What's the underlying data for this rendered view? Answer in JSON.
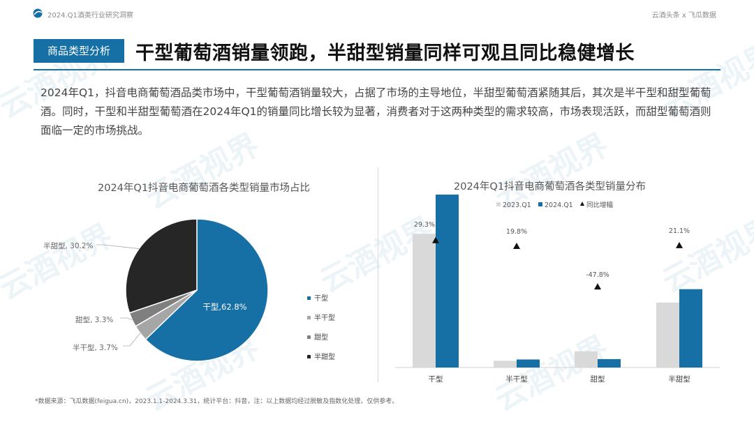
{
  "header": {
    "report_title": "2024.Q1酒类行业研究洞察",
    "brand": "云酒头条 x 飞瓜数据"
  },
  "section_tag": "商品类型分析",
  "headline": "干型葡萄酒销量领跑，半甜型销量同样可观且同比稳健增长",
  "description": "2024年Q1，抖音电商葡萄酒品类市场中，干型葡萄酒销量较大，占据了市场的主导地位，半甜型葡萄酒紧随其后，其次是半干型和甜型葡萄酒。同时，干型和半甜型葡萄酒在2024年Q1的销量同比增长较为显著，消费者对于这两种类型的需求较高，市场表现活跃，而甜型葡萄酒则面临一定的市场挑战。",
  "watermark": "云酒视界",
  "footnote": "*数据来源：飞瓜数据(feigua.cn)，2023.1.1-2024.3.31，统计平台：抖音，注：以上数据均经过脱敏及指数化处理，仅供参考。",
  "colors": {
    "primary": "#1670a6",
    "light_gray": "#d9d9d9",
    "mid_gray": "#7f7f7f",
    "dark": "#262626"
  },
  "chart_data": [
    {
      "type": "pie",
      "title": "2024年Q1抖音电商葡萄酒各类型销量市场占比",
      "slices": [
        {
          "label": "干型",
          "value": 62.8,
          "color": "#1670a6",
          "data_label": "干型,62.8%"
        },
        {
          "label": "半干型",
          "value": 3.7,
          "color": "#a6a6a6",
          "data_label": "半干型, 3.7%"
        },
        {
          "label": "甜型",
          "value": 3.3,
          "color": "#7f7f7f",
          "data_label": "甜型, 3.3%"
        },
        {
          "label": "半甜型",
          "value": 30.2,
          "color": "#262626",
          "data_label": "半甜型, 30.2%"
        }
      ],
      "legend_position": "right"
    },
    {
      "type": "bar",
      "title": "2024年Q1抖音电商葡萄酒各类型销量分布",
      "categories": [
        "干型",
        "半干型",
        "甜型",
        "半甜型"
      ],
      "series": [
        {
          "name": "2023.Q1",
          "values": [
            70,
            3.5,
            8.5,
            34
          ],
          "color": "#d9d9d9"
        },
        {
          "name": "2024.Q1",
          "values": [
            90.5,
            4.2,
            4.4,
            41
          ],
          "color": "#1670a6"
        }
      ],
      "growth": {
        "name": "同比增幅",
        "values": [
          29.3,
          19.8,
          -47.8,
          21.1
        ],
        "labels": [
          "29.3%",
          "19.8%",
          "-47.8%",
          "21.1%"
        ]
      },
      "legend_position": "top",
      "ylim": [
        0,
        100
      ]
    }
  ]
}
